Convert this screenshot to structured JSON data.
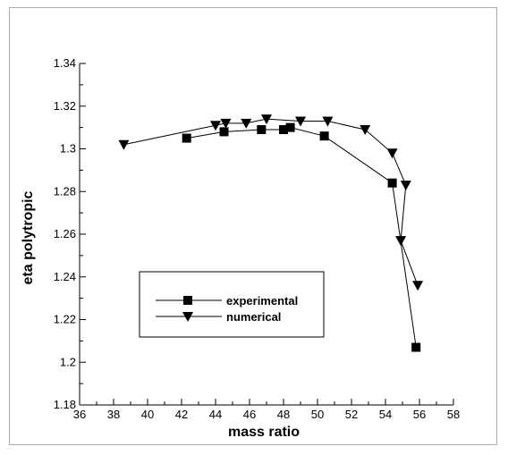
{
  "chart_data": {
    "type": "line",
    "title": "",
    "xlabel": "mass ratio",
    "ylabel": "eta polytropic",
    "xlim": [
      36,
      58
    ],
    "ylim": [
      1.18,
      1.34
    ],
    "xticks": [
      36,
      38,
      40,
      42,
      44,
      46,
      48,
      50,
      52,
      54,
      56,
      58
    ],
    "xtick_labels": [
      "36",
      "38",
      "40",
      "42",
      "44",
      "46",
      "48",
      "50",
      "52",
      "54",
      "56",
      "58"
    ],
    "yticks": [
      1.18,
      1.2,
      1.22,
      1.24,
      1.26,
      1.28,
      1.3,
      1.32,
      1.34
    ],
    "ytick_labels": [
      "1.18",
      "1.2",
      "1.22",
      "1.24",
      "1.26",
      "1.28",
      "1.3",
      "1.32",
      "1.34"
    ],
    "grid": false,
    "legend_position": "lower-left",
    "series": [
      {
        "name": "experimental",
        "marker": "square",
        "color": "#000000",
        "x": [
          42.3,
          44.5,
          46.7,
          48.0,
          48.4,
          50.4,
          54.4,
          55.8
        ],
        "y": [
          1.305,
          1.308,
          1.309,
          1.309,
          1.31,
          1.306,
          1.284,
          1.207
        ]
      },
      {
        "name": "numerical",
        "marker": "triangle-down",
        "color": "#000000",
        "x": [
          38.6,
          44.0,
          44.6,
          45.8,
          47.0,
          49.0,
          50.6,
          52.8,
          54.4,
          55.2,
          54.9,
          55.9
        ],
        "y": [
          1.302,
          1.311,
          1.312,
          1.312,
          1.314,
          1.313,
          1.313,
          1.309,
          1.298,
          1.283,
          1.257,
          1.236
        ]
      }
    ]
  }
}
